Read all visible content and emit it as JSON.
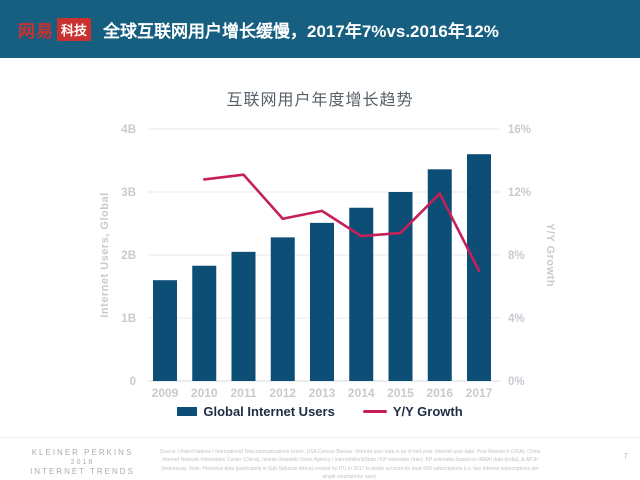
{
  "header": {
    "logo": {
      "brand": "网易",
      "sub": "科技"
    },
    "title": "全球互联网用户增长缓慢，2017年7%vs.2016年12%"
  },
  "chart_data": {
    "type": "bar",
    "title": "互联网用户年度增长趋势",
    "categories": [
      "2009",
      "2010",
      "2011",
      "2012",
      "2013",
      "2014",
      "2015",
      "2016",
      "2017"
    ],
    "series": [
      {
        "name": "Global Internet Users",
        "type": "bar",
        "axis": "left",
        "unit": "B",
        "values": [
          1.6,
          1.83,
          2.05,
          2.28,
          2.51,
          2.75,
          3.0,
          3.36,
          3.6
        ]
      },
      {
        "name": "Y/Y Growth",
        "type": "line",
        "axis": "right",
        "unit": "%",
        "values": [
          null,
          12.8,
          13.1,
          10.3,
          10.8,
          9.2,
          9.4,
          11.9,
          7.0
        ]
      }
    ],
    "left_axis": {
      "label": "Internet Users, Global",
      "min": 0,
      "max": 4,
      "ticks": [
        "0",
        "1B",
        "2B",
        "3B",
        "4B"
      ]
    },
    "right_axis": {
      "label": "Y/Y Growth",
      "min": 0,
      "max": 16,
      "ticks": [
        "0%",
        "4%",
        "8%",
        "12%",
        "16%"
      ]
    },
    "legend": [
      {
        "label": "Global Internet Users",
        "swatch": "bar"
      },
      {
        "label": "Y/Y Growth",
        "swatch": "line"
      }
    ],
    "grid": true,
    "legend_position": "bottom",
    "colors": {
      "bar": "#0D4E77",
      "line": "#C52057",
      "tick_text": "#C7CBD0",
      "grid": "#E8EAEB"
    }
  },
  "footer": {
    "brand_lines": [
      "KLEINER PERKINS",
      "2018",
      "INTERNET TRENDS"
    ],
    "source": "Source: United Nations / International Telecommunications Union, USA Census Bureau. Internet user data is as of mid-year. Internet user data: Pew Research (USA), China Internet Network Information Center (China), Islamic Republic News Agency / InternetWorldStats / KP estimates (Iran). KP estimates based on IAMAI data (India), & APJII (Indonesia). Note: Historical data (particularly in Sub-Saharan Africa) revised by ITU in 2017 to better account for dual-SIM subscriptions (i.e. two Internet subscriptions per single smartphone user).",
    "page_number": "7"
  }
}
